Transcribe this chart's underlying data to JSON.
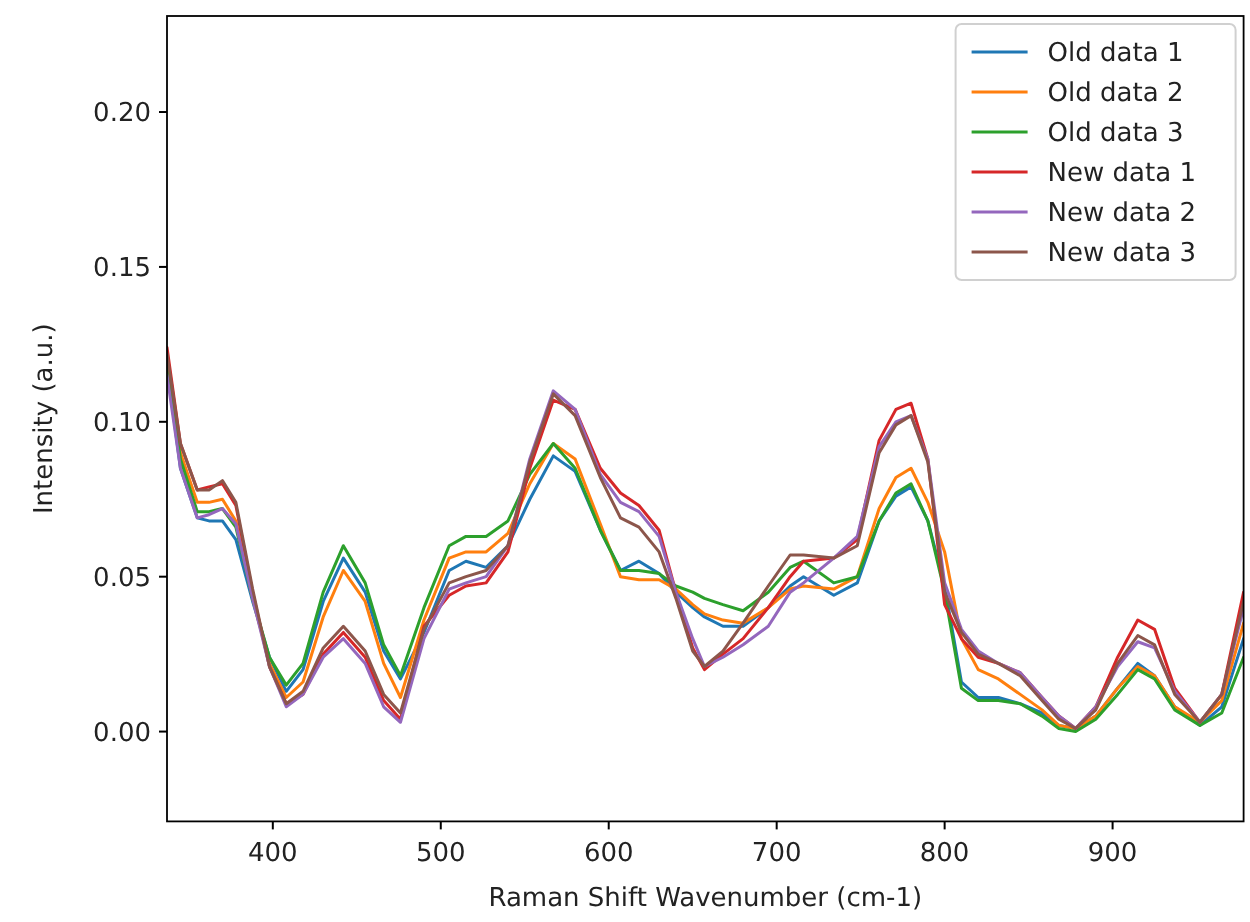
{
  "chart_data": {
    "type": "line",
    "xlabel": "Raman Shift Wavenumber (cm-1)",
    "ylabel": "Intensity (a.u.)",
    "x": [
      337,
      345,
      355,
      362,
      370,
      378,
      388,
      398,
      408,
      418,
      430,
      442,
      455,
      466,
      476,
      490,
      505,
      515,
      527,
      540,
      553,
      567,
      580,
      595,
      607,
      618,
      630,
      640,
      650,
      657,
      668,
      680,
      695,
      708,
      716,
      734,
      748,
      761,
      771,
      780,
      790,
      800,
      810,
      820,
      832,
      845,
      858,
      868,
      878,
      890,
      903,
      915,
      925,
      937,
      952,
      965,
      978
    ],
    "series": [
      {
        "name": "Old data 1",
        "color": "#1f77b4",
        "values": [
          0.118,
          0.085,
          0.069,
          0.068,
          0.068,
          0.062,
          0.042,
          0.024,
          0.013,
          0.02,
          0.042,
          0.056,
          0.045,
          0.026,
          0.017,
          0.032,
          0.052,
          0.055,
          0.053,
          0.06,
          0.075,
          0.089,
          0.084,
          0.065,
          0.052,
          0.055,
          0.051,
          0.045,
          0.04,
          0.037,
          0.034,
          0.034,
          0.04,
          0.047,
          0.05,
          0.044,
          0.048,
          0.068,
          0.076,
          0.079,
          0.068,
          0.047,
          0.016,
          0.011,
          0.011,
          0.009,
          0.006,
          0.002,
          0.001,
          0.005,
          0.014,
          0.022,
          0.018,
          0.008,
          0.002,
          0.008,
          0.03
        ]
      },
      {
        "name": "Old data 2",
        "color": "#ff7f0e",
        "values": [
          0.12,
          0.09,
          0.074,
          0.074,
          0.075,
          0.068,
          0.043,
          0.022,
          0.011,
          0.016,
          0.037,
          0.052,
          0.042,
          0.022,
          0.011,
          0.036,
          0.056,
          0.058,
          0.058,
          0.064,
          0.08,
          0.093,
          0.088,
          0.067,
          0.05,
          0.049,
          0.049,
          0.046,
          0.041,
          0.038,
          0.036,
          0.035,
          0.04,
          0.046,
          0.047,
          0.046,
          0.05,
          0.072,
          0.082,
          0.085,
          0.074,
          0.058,
          0.03,
          0.02,
          0.017,
          0.012,
          0.007,
          0.002,
          0.001,
          0.005,
          0.014,
          0.021,
          0.018,
          0.008,
          0.003,
          0.01,
          0.035
        ]
      },
      {
        "name": "Old data 3",
        "color": "#2ca02c",
        "values": [
          0.12,
          0.088,
          0.071,
          0.071,
          0.072,
          0.066,
          0.043,
          0.024,
          0.015,
          0.022,
          0.045,
          0.06,
          0.048,
          0.028,
          0.018,
          0.04,
          0.06,
          0.063,
          0.063,
          0.068,
          0.083,
          0.093,
          0.085,
          0.065,
          0.052,
          0.052,
          0.051,
          0.047,
          0.045,
          0.043,
          0.041,
          0.039,
          0.045,
          0.053,
          0.055,
          0.048,
          0.05,
          0.068,
          0.077,
          0.08,
          0.068,
          0.045,
          0.014,
          0.01,
          0.01,
          0.009,
          0.005,
          0.001,
          0.0,
          0.004,
          0.012,
          0.02,
          0.017,
          0.007,
          0.002,
          0.006,
          0.024
        ]
      },
      {
        "name": "New data 1",
        "color": "#d62728",
        "values": [
          0.124,
          0.093,
          0.078,
          0.079,
          0.08,
          0.073,
          0.045,
          0.021,
          0.009,
          0.012,
          0.025,
          0.032,
          0.024,
          0.01,
          0.004,
          0.034,
          0.044,
          0.047,
          0.048,
          0.058,
          0.085,
          0.107,
          0.104,
          0.085,
          0.077,
          0.073,
          0.065,
          0.045,
          0.027,
          0.02,
          0.025,
          0.03,
          0.04,
          0.05,
          0.055,
          0.056,
          0.062,
          0.094,
          0.104,
          0.106,
          0.088,
          0.041,
          0.03,
          0.024,
          0.022,
          0.019,
          0.011,
          0.005,
          0.001,
          0.008,
          0.024,
          0.036,
          0.033,
          0.014,
          0.003,
          0.012,
          0.045
        ]
      },
      {
        "name": "New data 2",
        "color": "#9467bd",
        "values": [
          0.115,
          0.085,
          0.069,
          0.07,
          0.072,
          0.067,
          0.043,
          0.021,
          0.008,
          0.012,
          0.024,
          0.03,
          0.022,
          0.008,
          0.003,
          0.03,
          0.046,
          0.048,
          0.05,
          0.06,
          0.088,
          0.11,
          0.104,
          0.083,
          0.074,
          0.071,
          0.063,
          0.045,
          0.03,
          0.021,
          0.024,
          0.028,
          0.034,
          0.045,
          0.048,
          0.056,
          0.063,
          0.092,
          0.1,
          0.102,
          0.088,
          0.048,
          0.033,
          0.026,
          0.022,
          0.019,
          0.011,
          0.005,
          0.001,
          0.008,
          0.021,
          0.029,
          0.027,
          0.013,
          0.003,
          0.012,
          0.04
        ]
      },
      {
        "name": "New data 3",
        "color": "#8c564b",
        "values": [
          0.122,
          0.093,
          0.078,
          0.078,
          0.081,
          0.074,
          0.046,
          0.021,
          0.009,
          0.013,
          0.027,
          0.034,
          0.026,
          0.012,
          0.006,
          0.033,
          0.048,
          0.05,
          0.052,
          0.06,
          0.087,
          0.109,
          0.102,
          0.082,
          0.069,
          0.066,
          0.058,
          0.043,
          0.026,
          0.021,
          0.026,
          0.035,
          0.047,
          0.057,
          0.057,
          0.056,
          0.06,
          0.09,
          0.099,
          0.102,
          0.087,
          0.045,
          0.032,
          0.025,
          0.022,
          0.018,
          0.01,
          0.004,
          0.001,
          0.007,
          0.022,
          0.031,
          0.028,
          0.012,
          0.003,
          0.012,
          0.042
        ]
      }
    ],
    "xlim": [
      337,
      978
    ],
    "xticks": [
      400,
      500,
      600,
      700,
      800,
      900
    ],
    "ylim": [
      -0.029,
      0.231
    ],
    "yticks": [
      {
        "value": 0,
        "label": "0.00"
      },
      {
        "value": 0.05,
        "label": "0.05"
      },
      {
        "value": 0.1,
        "label": "0.10"
      },
      {
        "value": 0.15,
        "label": "0.15"
      },
      {
        "value": 0.2,
        "label": "0.20"
      }
    ],
    "legend": "top right",
    "grid": false,
    "line_style": "solid",
    "marker": "none"
  }
}
